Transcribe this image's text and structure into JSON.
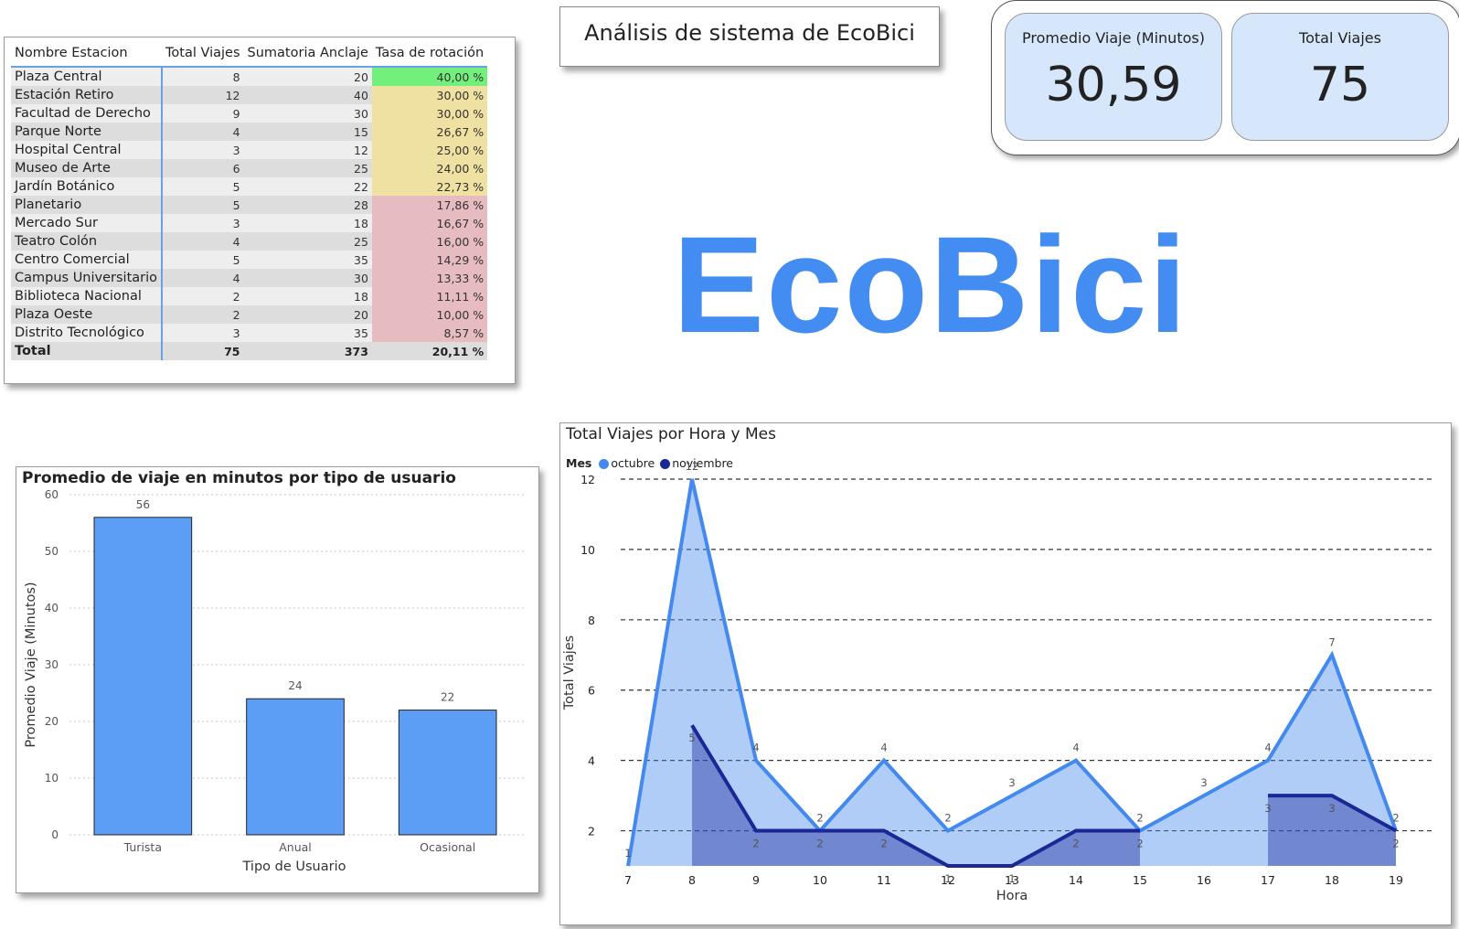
{
  "table": {
    "headers": [
      "Nombre Estacion",
      "Total Viajes",
      "Sumatoria Anclaje",
      "Tasa de rotación"
    ],
    "rows": [
      [
        "Plaza Central",
        "8",
        "20",
        "40,00 %"
      ],
      [
        "Estación Retiro",
        "12",
        "40",
        "30,00 %"
      ],
      [
        "Facultad de Derecho",
        "9",
        "30",
        "30,00 %"
      ],
      [
        "Parque Norte",
        "4",
        "15",
        "26,67 %"
      ],
      [
        "Hospital Central",
        "3",
        "12",
        "25,00 %"
      ],
      [
        "Museo de Arte",
        "6",
        "25",
        "24,00 %"
      ],
      [
        "Jardín Botánico",
        "5",
        "22",
        "22,73 %"
      ],
      [
        "Planetario",
        "5",
        "28",
        "17,86 %"
      ],
      [
        "Mercado Sur",
        "3",
        "18",
        "16,67 %"
      ],
      [
        "Teatro Colón",
        "4",
        "25",
        "16,00 %"
      ],
      [
        "Centro Comercial",
        "5",
        "35",
        "14,29 %"
      ],
      [
        "Campus Universitario",
        "4",
        "30",
        "13,33 %"
      ],
      [
        "Biblioteca Nacional",
        "2",
        "18",
        "11,11 %"
      ],
      [
        "Plaza Oeste",
        "2",
        "20",
        "10,00 %"
      ],
      [
        "Distrito Tecnológico",
        "3",
        "35",
        "8,57 %"
      ]
    ],
    "rate_levels": [
      "high",
      "mid",
      "mid",
      "mid",
      "mid",
      "mid",
      "mid",
      "low",
      "low",
      "low",
      "low",
      "low",
      "low",
      "low",
      "low"
    ],
    "total": [
      "Total",
      "75",
      "373",
      "20,11 %"
    ]
  },
  "colors": {
    "high": "#73f07b",
    "mid": "#efe1a1",
    "low": "#e7bcc0",
    "bar": "#5c9ef5",
    "octubre": "#4389ee",
    "noviembre": "#1a2795",
    "brand": "#438cf2"
  },
  "title": "Análisis de sistema de EcoBici",
  "kpis": [
    {
      "label": "Promedio Viaje (Minutos)",
      "value": "30,59"
    },
    {
      "label": "Total Viajes",
      "value": "75"
    }
  ],
  "brand": "EcoBici",
  "chart_data": [
    {
      "type": "bar",
      "title": "Promedio de viaje en minutos por tipo de usuario",
      "xlabel": "Tipo de Usuario",
      "ylabel": "Promedio Viaje (Minutos)",
      "categories": [
        "Turista",
        "Anual",
        "Ocasional"
      ],
      "values": [
        56,
        24,
        22
      ],
      "data_labels": [
        "56",
        "24",
        "22"
      ],
      "ylim": [
        0,
        60
      ],
      "yticks": [
        0,
        10,
        20,
        30,
        40,
        50,
        60
      ],
      "grid": true
    },
    {
      "type": "area",
      "title": "Total Viajes por Hora y Mes",
      "xlabel": "Hora",
      "ylabel": "Total Viajes",
      "legend_title": "Mes",
      "legend_position": "top-left",
      "x": [
        7,
        8,
        9,
        10,
        11,
        12,
        13,
        14,
        15,
        16,
        17,
        18,
        19
      ],
      "ylim": [
        1,
        12
      ],
      "yticks": [
        2,
        4,
        6,
        8,
        10,
        12
      ],
      "grid": true,
      "series": [
        {
          "name": "octubre",
          "points": [
            [
              7,
              1
            ],
            [
              8,
              12
            ],
            [
              9,
              4
            ],
            [
              10,
              2
            ],
            [
              11,
              4
            ],
            [
              12,
              2
            ],
            [
              13,
              3
            ],
            [
              14,
              4
            ],
            [
              15,
              2
            ],
            [
              16,
              3
            ],
            [
              17,
              4
            ],
            [
              18,
              7
            ],
            [
              19,
              2
            ]
          ]
        },
        {
          "name": "noviembre",
          "segments": [
            [
              [
                8,
                5
              ],
              [
                9,
                2
              ],
              [
                10,
                2
              ],
              [
                11,
                2
              ],
              [
                12,
                1
              ],
              [
                13,
                1
              ],
              [
                14,
                2
              ],
              [
                15,
                2
              ]
            ],
            [
              [
                17,
                3
              ],
              [
                18,
                3
              ],
              [
                19,
                2
              ]
            ]
          ]
        }
      ]
    }
  ]
}
